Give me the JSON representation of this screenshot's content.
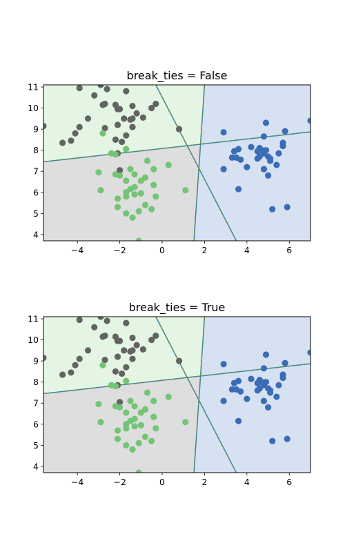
{
  "chart_data": [
    {
      "type": "scatter",
      "title": "break_ties = False",
      "xlim": [
        -5.6,
        7.0
      ],
      "ylim": [
        3.7,
        11.1
      ],
      "xticks": [
        -4,
        -2,
        0,
        2,
        4,
        6
      ],
      "yticks": [
        4,
        5,
        6,
        7,
        8,
        9,
        10,
        11
      ],
      "xtick_labels": [
        "−4",
        "−2",
        "0",
        "2",
        "4",
        "6"
      ],
      "ytick_labels": [
        "4",
        "5",
        "6",
        "7",
        "8",
        "9",
        "10",
        "11"
      ],
      "region_colors": {
        "top_left": "#e5f5e3",
        "right": "#d6e1f2",
        "bottom": "#dedede"
      },
      "boundary_colors": [
        "#2b8cbe",
        "#6a8a5a"
      ],
      "boundaries": [
        {
          "from": [
            -5.6,
            7.45
          ],
          "to": [
            7.0,
            8.87
          ]
        },
        {
          "from": [
            1.5,
            3.7
          ],
          "to": [
            2.0,
            11.1
          ]
        },
        {
          "from": [
            -0.3,
            11.1
          ],
          "to": [
            3.5,
            3.7
          ]
        }
      ],
      "series": [
        {
          "color": "#636363",
          "points": [
            [
              -5.6,
              9.15
            ],
            [
              -4.7,
              8.35
            ],
            [
              -4.3,
              8.45
            ],
            [
              -4.1,
              8.8
            ],
            [
              -3.9,
              9.1
            ],
            [
              -3.5,
              9.5
            ],
            [
              -3.9,
              10.95
            ],
            [
              -3.2,
              10.6
            ],
            [
              -2.9,
              11.1
            ],
            [
              -2.8,
              10.15
            ],
            [
              -2.7,
              10.2
            ],
            [
              -2.6,
              10.9
            ],
            [
              -2.7,
              9.05
            ],
            [
              -2.2,
              10.15
            ],
            [
              -2.1,
              9.95
            ],
            [
              -2.0,
              9.95
            ],
            [
              -2.1,
              9.2
            ],
            [
              -1.8,
              9.5
            ],
            [
              -1.7,
              10.8
            ],
            [
              -1.5,
              9.45
            ],
            [
              -1.4,
              9.5
            ],
            [
              -1.4,
              9.1
            ],
            [
              -1.2,
              9.75
            ],
            [
              -0.9,
              9.55
            ],
            [
              -0.5,
              10.0
            ],
            [
              -0.3,
              10.2
            ],
            [
              -1.4,
              10.1
            ],
            [
              -2.2,
              8.5
            ],
            [
              -2.1,
              7.85
            ],
            [
              -1.9,
              8.4
            ],
            [
              -1.7,
              8.7
            ],
            [
              -2.0,
              7.05
            ],
            [
              0.8,
              9.0
            ]
          ]
        },
        {
          "color": "#74c476",
          "points": [
            [
              -2.8,
              8.8
            ],
            [
              -2.4,
              7.85
            ],
            [
              -1.7,
              8.05
            ],
            [
              -2.2,
              7.8
            ],
            [
              -3.0,
              6.95
            ],
            [
              -2.9,
              6.1
            ],
            [
              -2.2,
              6.85
            ],
            [
              -2.0,
              6.8
            ],
            [
              -1.7,
              6.55
            ],
            [
              -1.5,
              7.1
            ],
            [
              -1.3,
              6.85
            ],
            [
              -1.5,
              6.15
            ],
            [
              -1.7,
              6.0
            ],
            [
              -1.7,
              5.8
            ],
            [
              -2.1,
              5.7
            ],
            [
              -2.1,
              5.3
            ],
            [
              -1.3,
              6.25
            ],
            [
              -1.3,
              5.9
            ],
            [
              -1.0,
              6.55
            ],
            [
              -0.8,
              6.7
            ],
            [
              -0.7,
              7.5
            ],
            [
              -0.4,
              7.1
            ],
            [
              -0.4,
              6.35
            ],
            [
              -1.0,
              5.95
            ],
            [
              -0.8,
              5.4
            ],
            [
              -0.3,
              5.8
            ],
            [
              -0.5,
              5.2
            ],
            [
              -1.1,
              5.1
            ],
            [
              -1.7,
              5.0
            ],
            [
              -1.4,
              4.8
            ],
            [
              -1.1,
              3.7
            ],
            [
              0.3,
              7.3
            ],
            [
              1.1,
              6.1
            ]
          ]
        },
        {
          "color": "#3a6db5",
          "points": [
            [
              2.9,
              8.85
            ],
            [
              2.9,
              7.1
            ],
            [
              3.3,
              7.65
            ],
            [
              3.4,
              7.95
            ],
            [
              3.5,
              7.65
            ],
            [
              3.6,
              8.05
            ],
            [
              3.7,
              7.55
            ],
            [
              3.6,
              6.15
            ],
            [
              4.0,
              7.2
            ],
            [
              4.2,
              8.15
            ],
            [
              4.5,
              7.6
            ],
            [
              4.6,
              7.7
            ],
            [
              4.5,
              7.95
            ],
            [
              4.6,
              8.1
            ],
            [
              4.7,
              8.0
            ],
            [
              4.8,
              8.65
            ],
            [
              4.8,
              7.1
            ],
            [
              4.8,
              7.85
            ],
            [
              4.9,
              8.0
            ],
            [
              4.9,
              9.3
            ],
            [
              5.0,
              7.7
            ],
            [
              5.0,
              6.8
            ],
            [
              5.1,
              7.5
            ],
            [
              5.1,
              7.6
            ],
            [
              5.2,
              5.2
            ],
            [
              5.4,
              7.3
            ],
            [
              5.5,
              7.85
            ],
            [
              5.7,
              8.35
            ],
            [
              5.7,
              8.2
            ],
            [
              5.8,
              8.9
            ],
            [
              5.9,
              5.3
            ],
            [
              7.0,
              9.4
            ]
          ]
        }
      ]
    },
    {
      "type": "scatter",
      "title": "break_ties = True",
      "xlim": [
        -5.6,
        7.0
      ],
      "ylim": [
        3.7,
        11.1
      ],
      "xticks": [
        -4,
        -2,
        0,
        2,
        4,
        6
      ],
      "yticks": [
        4,
        5,
        6,
        7,
        8,
        9,
        10,
        11
      ],
      "xtick_labels": [
        "−4",
        "−2",
        "0",
        "2",
        "4",
        "6"
      ],
      "ytick_labels": [
        "4",
        "5",
        "6",
        "7",
        "8",
        "9",
        "10",
        "11"
      ],
      "region_colors": {
        "top_left": "#e5f5e3",
        "right": "#d6e1f2",
        "bottom": "#dedede"
      },
      "boundary_colors": [
        "#2b8cbe",
        "#6a8a5a"
      ],
      "boundaries": [
        {
          "from": [
            -5.6,
            7.45
          ],
          "to": [
            7.0,
            8.87
          ]
        },
        {
          "from": [
            1.5,
            3.7
          ],
          "to": [
            2.0,
            11.1
          ]
        },
        {
          "from": [
            -0.3,
            11.1
          ],
          "to": [
            3.5,
            3.7
          ]
        }
      ],
      "series": [
        {
          "color": "#636363",
          "points": [
            [
              -5.6,
              9.15
            ],
            [
              -4.7,
              8.35
            ],
            [
              -4.3,
              8.45
            ],
            [
              -4.1,
              8.8
            ],
            [
              -3.9,
              9.1
            ],
            [
              -3.5,
              9.5
            ],
            [
              -3.9,
              10.95
            ],
            [
              -3.2,
              10.6
            ],
            [
              -2.9,
              11.1
            ],
            [
              -2.8,
              10.15
            ],
            [
              -2.7,
              10.2
            ],
            [
              -2.6,
              10.9
            ],
            [
              -2.7,
              9.05
            ],
            [
              -2.2,
              10.15
            ],
            [
              -2.1,
              9.95
            ],
            [
              -2.0,
              9.95
            ],
            [
              -2.1,
              9.2
            ],
            [
              -1.8,
              9.5
            ],
            [
              -1.7,
              10.8
            ],
            [
              -1.5,
              9.45
            ],
            [
              -1.4,
              9.5
            ],
            [
              -1.4,
              9.1
            ],
            [
              -1.2,
              9.75
            ],
            [
              -0.9,
              9.55
            ],
            [
              -0.5,
              10.0
            ],
            [
              -0.3,
              10.2
            ],
            [
              -1.4,
              10.1
            ],
            [
              -2.2,
              8.5
            ],
            [
              -2.1,
              7.85
            ],
            [
              -1.9,
              8.4
            ],
            [
              -1.7,
              8.7
            ],
            [
              -2.0,
              7.05
            ],
            [
              0.8,
              9.0
            ]
          ]
        },
        {
          "color": "#74c476",
          "points": [
            [
              -2.8,
              8.8
            ],
            [
              -2.4,
              7.85
            ],
            [
              -1.7,
              8.05
            ],
            [
              -2.2,
              7.8
            ],
            [
              -3.0,
              6.95
            ],
            [
              -2.9,
              6.1
            ],
            [
              -2.2,
              6.85
            ],
            [
              -2.0,
              6.8
            ],
            [
              -1.7,
              6.55
            ],
            [
              -1.5,
              7.1
            ],
            [
              -1.3,
              6.85
            ],
            [
              -1.5,
              6.15
            ],
            [
              -1.7,
              6.0
            ],
            [
              -1.7,
              5.8
            ],
            [
              -2.1,
              5.7
            ],
            [
              -2.1,
              5.3
            ],
            [
              -1.3,
              6.25
            ],
            [
              -1.3,
              5.9
            ],
            [
              -1.0,
              6.55
            ],
            [
              -0.8,
              6.7
            ],
            [
              -0.7,
              7.5
            ],
            [
              -0.4,
              7.1
            ],
            [
              -0.4,
              6.35
            ],
            [
              -1.0,
              5.95
            ],
            [
              -0.8,
              5.4
            ],
            [
              -0.3,
              5.8
            ],
            [
              -0.5,
              5.2
            ],
            [
              -1.1,
              5.1
            ],
            [
              -1.7,
              5.0
            ],
            [
              -1.4,
              4.8
            ],
            [
              -1.1,
              3.7
            ],
            [
              0.3,
              7.3
            ],
            [
              1.1,
              6.1
            ]
          ]
        },
        {
          "color": "#3a6db5",
          "points": [
            [
              2.9,
              8.85
            ],
            [
              2.9,
              7.1
            ],
            [
              3.3,
              7.65
            ],
            [
              3.4,
              7.95
            ],
            [
              3.5,
              7.65
            ],
            [
              3.6,
              8.05
            ],
            [
              3.7,
              7.55
            ],
            [
              3.6,
              6.15
            ],
            [
              4.0,
              7.2
            ],
            [
              4.2,
              8.15
            ],
            [
              4.5,
              7.6
            ],
            [
              4.6,
              7.7
            ],
            [
              4.5,
              7.95
            ],
            [
              4.6,
              8.1
            ],
            [
              4.7,
              8.0
            ],
            [
              4.8,
              8.65
            ],
            [
              4.8,
              7.1
            ],
            [
              4.8,
              7.85
            ],
            [
              4.9,
              8.0
            ],
            [
              4.9,
              9.3
            ],
            [
              5.0,
              7.7
            ],
            [
              5.0,
              6.8
            ],
            [
              5.1,
              7.5
            ],
            [
              5.1,
              7.6
            ],
            [
              5.2,
              5.2
            ],
            [
              5.4,
              7.3
            ],
            [
              5.5,
              7.85
            ],
            [
              5.7,
              8.35
            ],
            [
              5.7,
              8.2
            ],
            [
              5.8,
              8.9
            ],
            [
              5.9,
              5.3
            ],
            [
              7.0,
              9.4
            ]
          ]
        }
      ]
    }
  ]
}
